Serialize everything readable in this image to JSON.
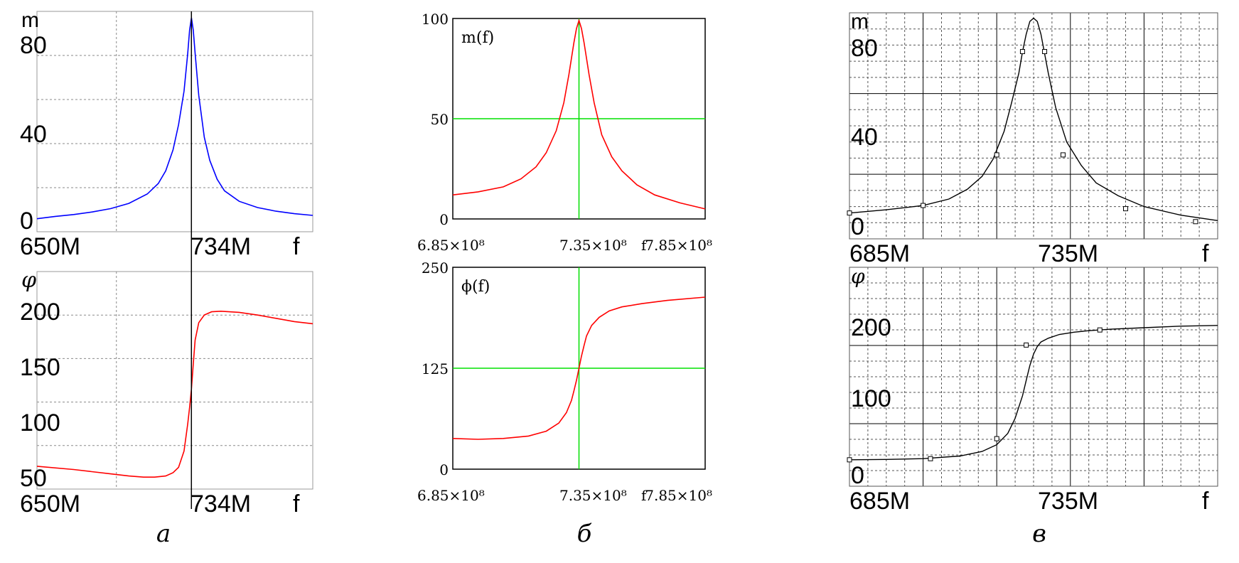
{
  "panels": [
    {
      "caption": "а"
    },
    {
      "caption": "б"
    },
    {
      "caption": "в"
    }
  ],
  "colors": {
    "blue": "#0000ff",
    "red": "#ff0000",
    "green": "#00e000",
    "black": "#000000",
    "grid": "#808080",
    "frame": "#9a9a9a"
  },
  "chart_data": [
    {
      "panel": "а",
      "position": "top",
      "type": "line",
      "title": "",
      "ylabel": "m",
      "xlabel": "f",
      "x_tick_labels": [
        "650M",
        "734M"
      ],
      "y_tick_labels": [
        "0",
        "40",
        "80"
      ],
      "xlim": [
        650,
        800
      ],
      "ylim": [
        -5,
        100
      ],
      "marker_x": 734,
      "line_color": "#0000ff",
      "series": [
        {
          "x": [
            650,
            660,
            670,
            680,
            690,
            700,
            710,
            716,
            720,
            724,
            727,
            730,
            732,
            733,
            734,
            735,
            736,
            738,
            741,
            744,
            748,
            752,
            760,
            770,
            780,
            790,
            800
          ],
          "y": [
            1.2,
            2.3,
            3.2,
            4.4,
            6,
            8.5,
            13,
            18,
            24,
            34,
            46,
            62,
            80,
            91,
            97,
            91,
            80,
            60,
            40,
            29,
            20,
            14.5,
            9.5,
            6.5,
            4.8,
            3.6,
            2.8
          ]
        }
      ]
    },
    {
      "panel": "а",
      "position": "bottom",
      "type": "line",
      "title": "",
      "ylabel": "φ",
      "xlabel": "f",
      "x_tick_labels": [
        "650M",
        "734M"
      ],
      "y_tick_labels": [
        "50",
        "100",
        "150",
        "200"
      ],
      "xlim": [
        650,
        800
      ],
      "ylim": [
        45,
        245
      ],
      "marker_x": 734,
      "line_color": "#ff0000",
      "series": [
        {
          "x": [
            650,
            670,
            690,
            700,
            708,
            714,
            720,
            724,
            727,
            730,
            732,
            733,
            734,
            735,
            736,
            738,
            741,
            745,
            750,
            760,
            770,
            780,
            790,
            800
          ],
          "y": [
            66,
            63,
            59,
            57,
            56,
            56,
            57,
            60,
            65,
            80,
            105,
            120,
            137,
            160,
            182,
            198,
            205,
            208,
            208.5,
            207.5,
            205,
            202,
            199,
            197
          ]
        }
      ]
    },
    {
      "panel": "б",
      "position": "top",
      "type": "line",
      "title": "m(f)",
      "ylabel": "",
      "xlabel": "f",
      "x_tick_labels": [
        "6.85×10⁸",
        "7.35×10⁸",
        "7.85×10⁸"
      ],
      "y_tick_labels": [
        "0",
        "50",
        "100"
      ],
      "xlim": [
        685,
        785
      ],
      "ylim": [
        0,
        100
      ],
      "crosshair": {
        "x": 735,
        "y": 50
      },
      "line_color": "#ff0000",
      "crosshair_color": "#00e000",
      "series": [
        {
          "x": [
            685,
            695,
            705,
            712,
            718,
            722,
            726,
            729,
            731,
            733,
            734,
            735,
            736,
            737,
            739,
            741,
            744,
            748,
            752,
            758,
            765,
            775,
            785
          ],
          "y": [
            12,
            13.5,
            16,
            20,
            26,
            33,
            44,
            58,
            72,
            88,
            95,
            99,
            95,
            88,
            72,
            58,
            42,
            31,
            24,
            17,
            12,
            8,
            5
          ]
        }
      ]
    },
    {
      "panel": "б",
      "position": "bottom",
      "type": "line",
      "title": "ϕ(f)",
      "ylabel": "",
      "xlabel": "f",
      "x_tick_labels": [
        "6.85×10⁸",
        "7.35×10⁸",
        "7.85×10⁸"
      ],
      "y_tick_labels": [
        "0",
        "125",
        "250"
      ],
      "xlim": [
        685,
        785
      ],
      "ylim": [
        0,
        250
      ],
      "crosshair": {
        "x": 735,
        "y": 125
      },
      "line_color": "#ff0000",
      "crosshair_color": "#00e000",
      "series": [
        {
          "x": [
            685,
            695,
            705,
            715,
            722,
            727,
            730,
            732,
            733,
            734,
            735,
            736,
            737,
            738,
            740,
            743,
            747,
            752,
            760,
            770,
            785
          ],
          "y": [
            38,
            37,
            38,
            41,
            47,
            57,
            70,
            85,
            97,
            110,
            125,
            140,
            153,
            165,
            178,
            188,
            196,
            201,
            205,
            209,
            213
          ]
        }
      ]
    },
    {
      "panel": "в",
      "position": "top",
      "type": "line",
      "title": "",
      "ylabel": "m",
      "xlabel": "f",
      "x_tick_labels": [
        "685M",
        "735M"
      ],
      "y_tick_labels": [
        "0",
        "40",
        "80"
      ],
      "xlim": [
        685,
        785
      ],
      "ylim": [
        -5,
        100
      ],
      "line_color": "#000000",
      "series": [
        {
          "x": [
            685,
            695,
            705,
            712,
            717,
            721,
            724,
            727,
            729,
            731,
            732,
            733,
            734,
            735,
            736,
            737,
            739,
            741,
            744,
            748,
            752,
            758,
            765,
            775,
            785
          ],
          "y": [
            7,
            8.5,
            10.5,
            13.5,
            18,
            24,
            32,
            45,
            58,
            72,
            82,
            90,
            96,
            97.5,
            96,
            90,
            72,
            56,
            40,
            29,
            21,
            15,
            10,
            6,
            3.5
          ]
        }
      ],
      "markers": {
        "x": [
          685,
          705,
          725,
          732,
          738,
          743,
          760,
          779
        ],
        "y": [
          7,
          10.5,
          34,
          82,
          82,
          34,
          9,
          3
        ]
      }
    },
    {
      "panel": "в",
      "position": "bottom",
      "type": "line",
      "title": "",
      "ylabel": "φ",
      "xlabel": "f",
      "x_tick_labels": [
        "685M",
        "735M"
      ],
      "y_tick_labels": [
        "0",
        "100",
        "200"
      ],
      "xlim": [
        685,
        785
      ],
      "ylim": [
        -15,
        275
      ],
      "line_color": "#000000",
      "series": [
        {
          "x": [
            685,
            695,
            705,
            715,
            721,
            725,
            728,
            730,
            732,
            733,
            734,
            735,
            736,
            737,
            739,
            742,
            746,
            750,
            756,
            765,
            775,
            785
          ],
          "y": [
            20,
            20.5,
            21.5,
            25,
            31,
            40,
            55,
            75,
            105,
            125,
            145,
            160,
            170,
            176,
            181,
            186,
            189,
            191,
            193,
            195,
            197,
            198
          ]
        }
      ],
      "markers": {
        "x": [
          685,
          707,
          725,
          733,
          753
        ],
        "y": [
          20,
          21.5,
          48,
          172,
          192
        ]
      }
    }
  ]
}
